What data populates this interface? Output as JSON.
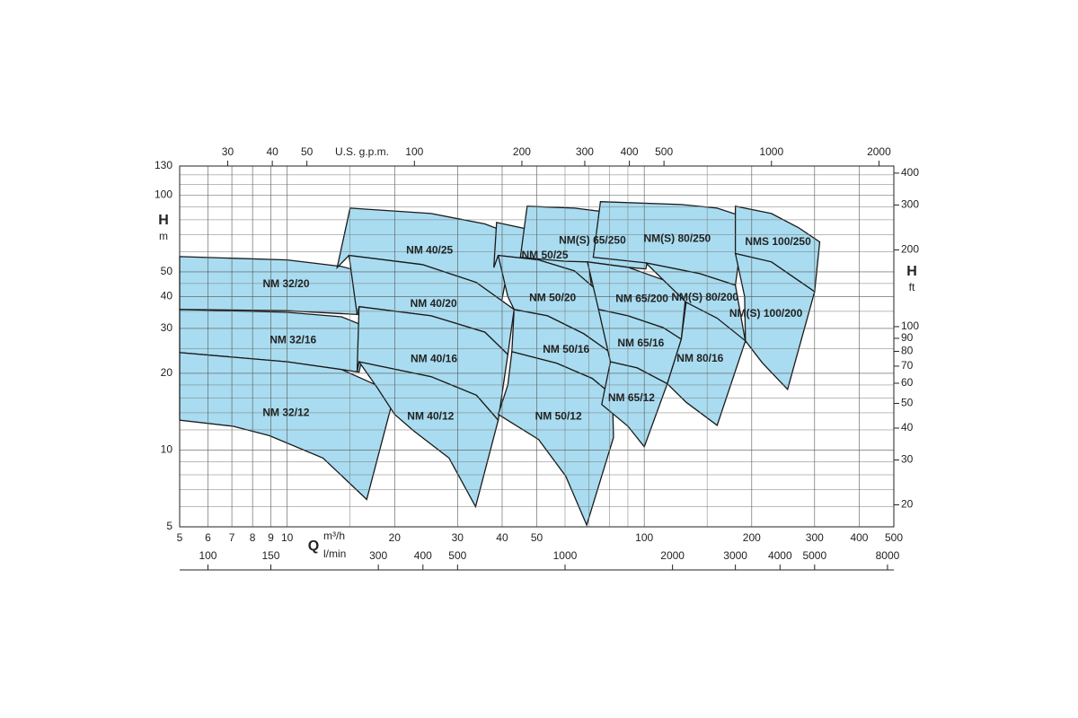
{
  "chart_data": {
    "type": "polygon",
    "color": "#a9dcf0",
    "grid": true,
    "xlog": true,
    "ylog": true,
    "xlim": [
      5,
      500
    ],
    "xticks": [
      5,
      6,
      7,
      8,
      9,
      10,
      20,
      30,
      40,
      50,
      100,
      200,
      300,
      400,
      500
    ],
    "xminor": [
      15,
      60,
      70,
      80,
      90,
      150
    ],
    "x_label": "Q",
    "x_unit": "m³/h",
    "ylim": [
      5,
      130
    ],
    "yticks": [
      5,
      10,
      20,
      30,
      40,
      50,
      100,
      130
    ],
    "yminor": [
      6,
      7,
      8,
      9,
      12,
      14,
      16,
      18,
      25,
      35,
      45,
      60,
      70,
      80,
      90,
      110,
      120
    ],
    "y_label": "H",
    "y_unit": "m",
    "y2lim": [
      16.4,
      426.5
    ],
    "y2ticks": [
      20,
      30,
      40,
      50,
      60,
      70,
      80,
      90,
      100,
      200,
      300,
      400
    ],
    "y2_label": "H",
    "y2_unit": "ft",
    "top_unit": "U.S. g.p.m.",
    "top_lim": [
      22.01,
      2201.5
    ],
    "top_ticks": [
      30,
      40,
      50,
      100,
      200,
      300,
      400,
      500,
      1000,
      2000
    ],
    "low_unit": "l/min",
    "low_lim": [
      83.33,
      8333.3
    ],
    "low_ticks": [
      100,
      150,
      300,
      400,
      500,
      1000,
      2000,
      3000,
      4000,
      5000,
      8000
    ],
    "series": [
      {
        "name": "NM 32/20",
        "x": [
          5,
          10,
          14.2,
          16.9,
          15.9,
          10,
          5
        ],
        "y": [
          57.4,
          55.7,
          52.5,
          49.2,
          34,
          35.2,
          35.6
        ]
      },
      {
        "name": "NM 32/16",
        "x": [
          5,
          10,
          14.2,
          16.9,
          15.9,
          14.2,
          10,
          5
        ],
        "y": [
          35.6,
          34.7,
          33.3,
          30.2,
          20.2,
          20.7,
          22.2,
          24.1
        ]
      },
      {
        "name": "NM 32/12",
        "x": [
          5,
          10,
          14.2,
          20,
          16.7,
          12.6,
          8.9,
          7.05,
          5
        ],
        "y": [
          24.1,
          22.2,
          20.7,
          16.7,
          6.4,
          9.3,
          11.4,
          12.4,
          13.1
        ]
      },
      {
        "name": "NM 40/25",
        "x": [
          15,
          25.3,
          35.8,
          43.2,
          39.7,
          33.9,
          23.9,
          14.9,
          13.8
        ],
        "y": [
          88.9,
          84.7,
          77.1,
          69.7,
          37.1,
          45.4,
          53.4,
          58,
          52
        ]
      },
      {
        "name": "NM 40/20",
        "x": [
          14.9,
          23.9,
          33.9,
          43.2,
          41.5,
          35.8,
          25.3,
          15.9,
          15.7
        ],
        "y": [
          58,
          53.4,
          45.4,
          35.6,
          23.7,
          29,
          33.6,
          36.5,
          34
        ]
      },
      {
        "name": "NM 40/16",
        "x": [
          15.9,
          25.3,
          35.8,
          41.5,
          39,
          33.9,
          25.3,
          15.9,
          15.7
        ],
        "y": [
          36.5,
          33.6,
          29,
          23.7,
          13.1,
          16.4,
          19.4,
          22.2,
          20.2
        ]
      },
      {
        "name": "NM 40/12",
        "x": [
          15.9,
          25.3,
          33.9,
          39,
          33.7,
          28.4,
          22.6,
          20,
          17.9
        ],
        "y": [
          22.2,
          19.4,
          16.4,
          13.1,
          6,
          9.3,
          11.9,
          13.8,
          17.5
        ]
      },
      {
        "name": "NM 50/25",
        "x": [
          38.6,
          50.6,
          67.7,
          69.3,
          71.5,
          63.8,
          50.6,
          39,
          37.9
        ],
        "y": [
          78.1,
          72,
          64.3,
          58,
          41.8,
          50.4,
          55.7,
          58,
          52
        ]
      },
      {
        "name": "NM 50/20",
        "x": [
          39,
          50.6,
          63.8,
          74.5,
          80.4,
          67.7,
          53.6,
          43.2,
          41.5
        ],
        "y": [
          58,
          55.7,
          50.4,
          41.8,
          24.1,
          28.6,
          33.6,
          35.6,
          40
        ]
      },
      {
        "name": "NM 50/16",
        "x": [
          43.2,
          53.6,
          67.7,
          80.4,
          81.5,
          71.5,
          56.9,
          42.6
        ],
        "y": [
          35.6,
          33.6,
          28.6,
          24.1,
          16.4,
          19.1,
          21.9,
          24.3
        ]
      },
      {
        "name": "NM 50/12",
        "x": [
          42.6,
          56.9,
          71.5,
          81.5,
          82,
          69,
          60.3,
          50.6,
          39,
          41.5
        ],
        "y": [
          24.3,
          21.9,
          19.1,
          16.4,
          11.2,
          5.08,
          7.9,
          11,
          13.8,
          18
        ]
      },
      {
        "name": "NM(S) 65/250",
        "x": [
          47,
          63.8,
          90,
          107.5,
          101,
          90,
          69.3,
          60,
          45
        ],
        "y": [
          90.4,
          88.9,
          83.7,
          78.1,
          51.3,
          52.1,
          54.7,
          55,
          57
        ]
      },
      {
        "name": "NM 65/200",
        "x": [
          69.3,
          90,
          113,
          131,
          127,
          113,
          90,
          74.5
        ],
        "y": [
          54.7,
          52.1,
          46.5,
          41.8,
          27.2,
          30.2,
          33.6,
          35.6
        ]
      },
      {
        "name": "NM 65/16",
        "x": [
          74.5,
          90,
          113,
          127,
          116,
          95.5,
          80.4
        ],
        "y": [
          35.6,
          33.6,
          30.2,
          27.2,
          18.2,
          21,
          22.2
        ]
      },
      {
        "name": "NM 65/12",
        "x": [
          80.4,
          95.5,
          116,
          100,
          90,
          76
        ],
        "y": [
          22.2,
          21,
          18.2,
          10.3,
          12.4,
          15.1
        ]
      },
      {
        "name": "NM(S) 80/250",
        "x": [
          75.4,
          127,
          160,
          191,
          180,
          143,
          101,
          72
        ],
        "y": [
          94.2,
          91.8,
          88.9,
          82,
          44.3,
          49.2,
          54.2,
          57
        ]
      },
      {
        "name": "NM(S) 80/200",
        "x": [
          101,
          143,
          180,
          192,
          160,
          131
        ],
        "y": [
          54.2,
          49.2,
          44.3,
          26.6,
          32.3,
          38
        ]
      },
      {
        "name": "NM 80/16",
        "x": [
          131,
          160,
          192,
          160,
          131,
          116,
          127
        ],
        "y": [
          38,
          32.9,
          26.8,
          12.5,
          15.4,
          18.2,
          27.2
        ]
      },
      {
        "name": "NMS 100/250",
        "x": [
          180,
          227,
          270,
          310,
          300,
          227,
          180
        ],
        "y": [
          90.4,
          84.7,
          74.6,
          65.5,
          41.8,
          54.7,
          59
        ]
      },
      {
        "name": "NM(S) 100/200",
        "x": [
          180,
          227,
          300,
          252,
          214,
          192,
          191
        ],
        "y": [
          59,
          54.7,
          41.8,
          17.3,
          22,
          26.8,
          40
        ]
      }
    ]
  }
}
